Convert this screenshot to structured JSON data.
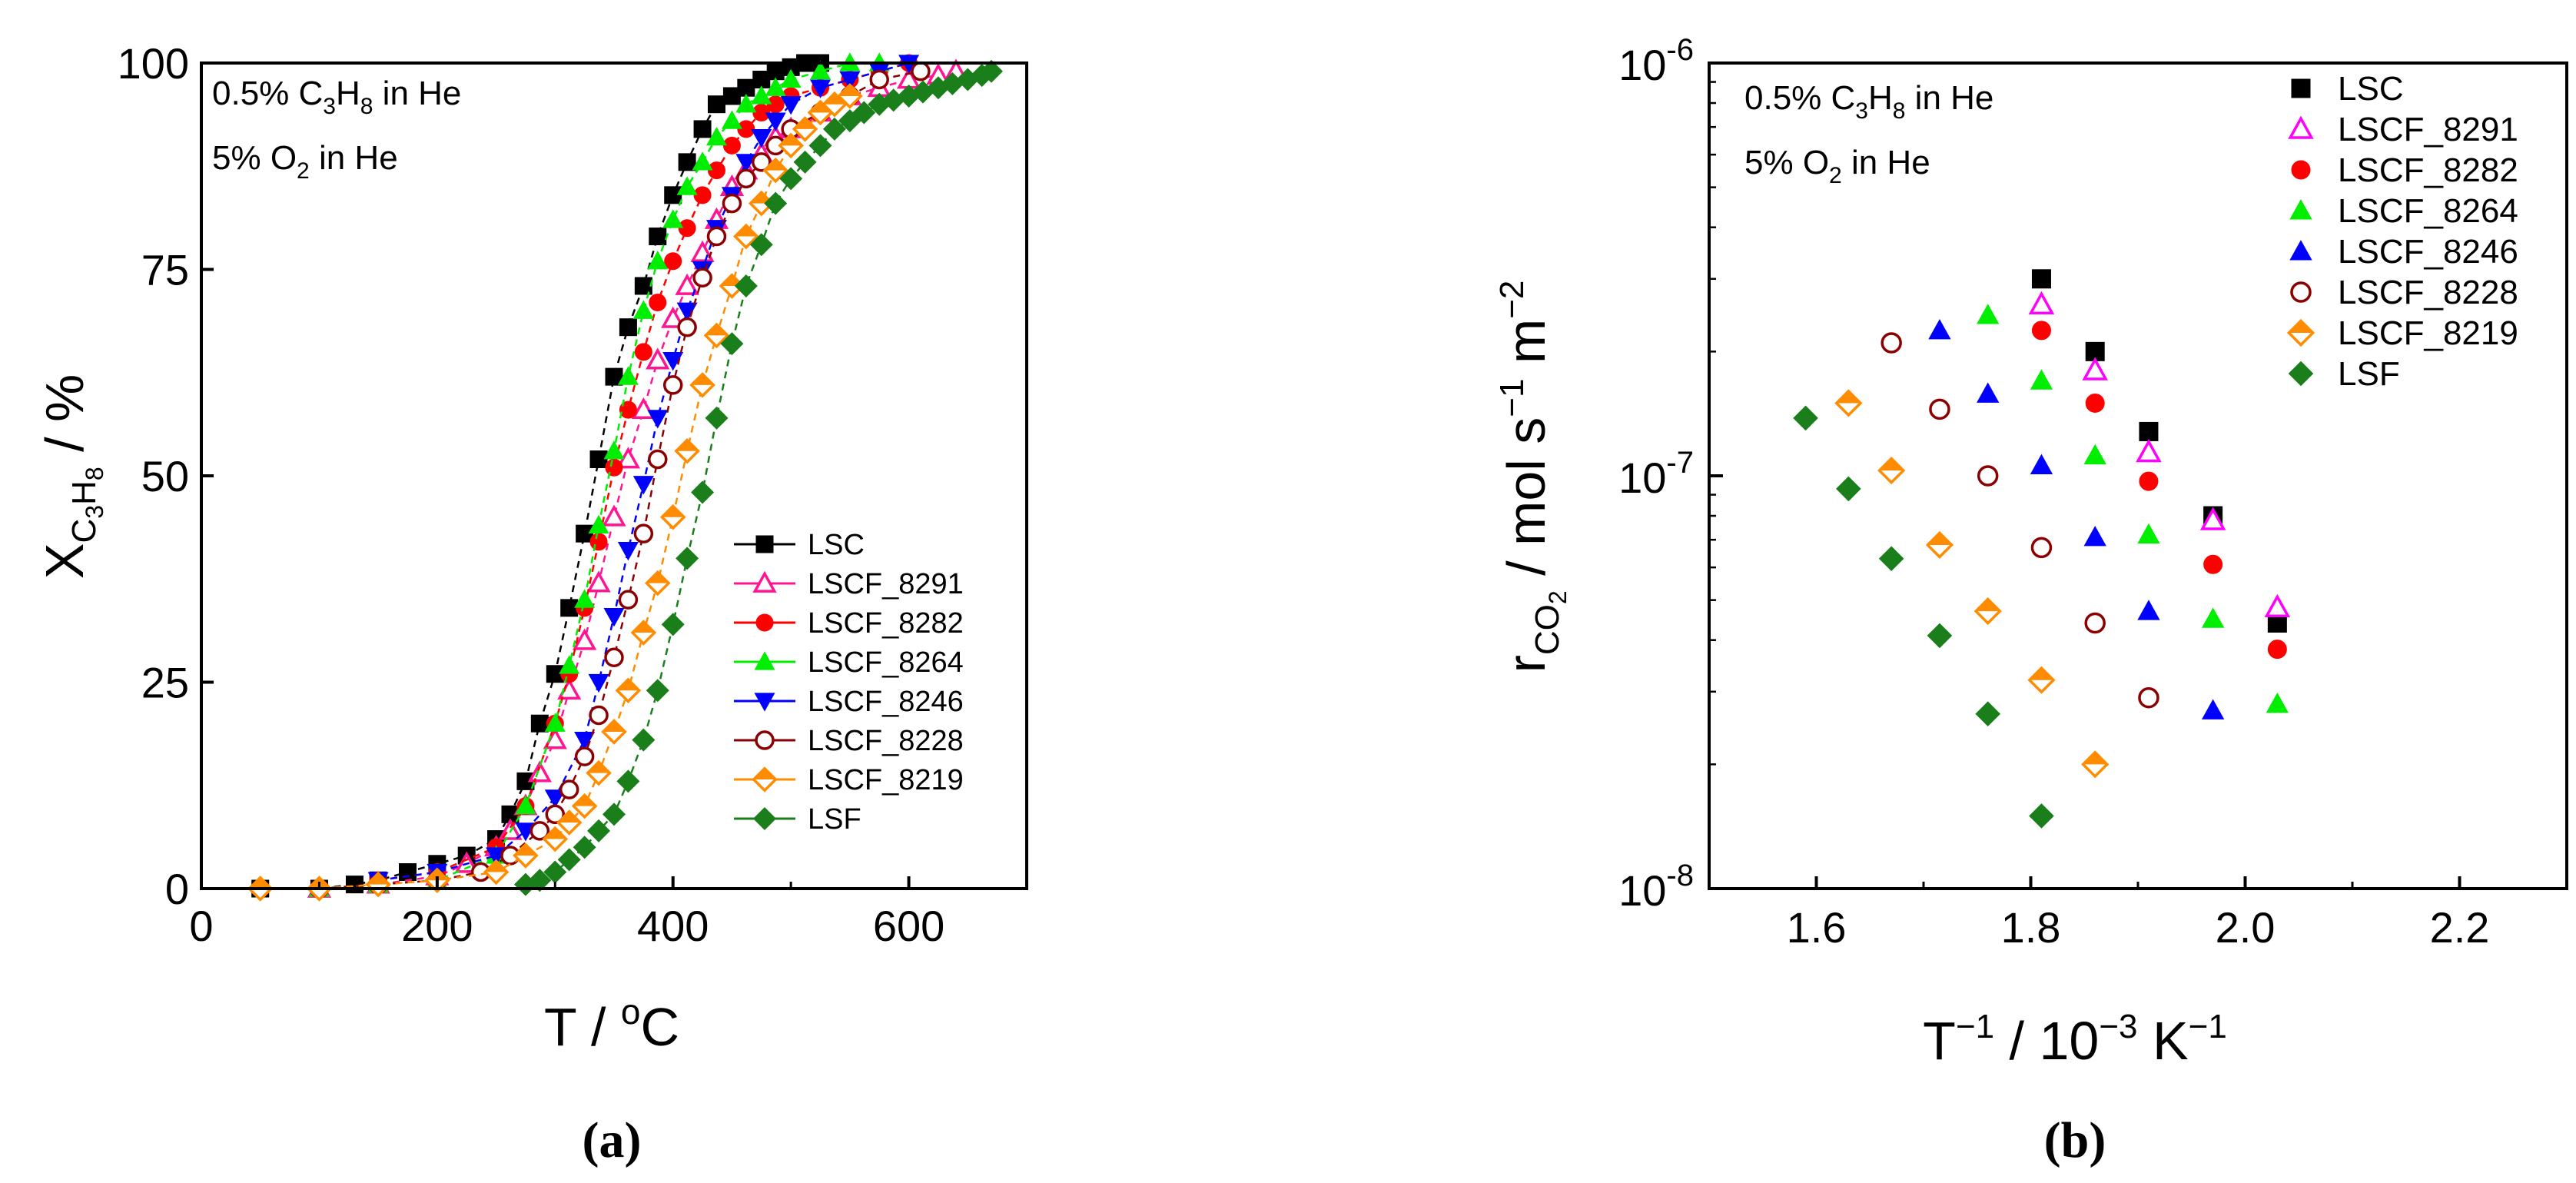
{
  "chart_data": [
    {
      "type": "line",
      "caption": "a",
      "conditions": [
        {
          "prefix": "0.5% C",
          "sub1": "3",
          "mid": "H",
          "sub2": "8",
          "suffix": " in He"
        },
        {
          "prefix": "5% O",
          "sub1": "2",
          "mid": "",
          "sub2": "",
          "suffix": " in He"
        }
      ],
      "xlabel": {
        "text": "T / ",
        "sup": "o",
        "after": "C"
      },
      "ylabel": {
        "text": "X",
        "sub": "C",
        "sub2": "3",
        "sub3": "H",
        "sub4": "8",
        "after": " / %"
      },
      "xlim": [
        0,
        700
      ],
      "ylim": [
        0,
        100
      ],
      "xticks": [
        0,
        200,
        400,
        600
      ],
      "yticks": [
        0,
        25,
        50,
        75,
        100
      ],
      "legend_position": "lower-right",
      "series": [
        {
          "name": "LSC",
          "color": "#000000",
          "marker": "square",
          "filled": true,
          "x": [
            50,
            100,
            130,
            150,
            175,
            200,
            225,
            250,
            262,
            275,
            287,
            300,
            312,
            325,
            337,
            350,
            362,
            375,
            387,
            400,
            412,
            425,
            437,
            450,
            462,
            475,
            487,
            500,
            512,
            525
          ],
          "y": [
            0,
            0,
            0.5,
            1,
            2,
            3,
            4,
            6,
            9,
            13,
            20,
            26,
            34,
            43,
            52,
            62,
            68,
            73,
            79,
            84,
            88,
            92,
            95,
            96,
            97,
            98,
            99,
            99.5,
            100,
            100
          ]
        },
        {
          "name": "LSCF_8291",
          "color": "#ff1493",
          "marker": "triangle-up",
          "filled": false,
          "x": [
            100,
            150,
            200,
            225,
            250,
            262,
            275,
            287,
            300,
            312,
            325,
            337,
            350,
            362,
            375,
            387,
            400,
            412,
            425,
            437,
            450,
            462,
            475,
            487,
            500,
            525,
            550,
            575,
            600,
            625,
            640
          ],
          "y": [
            0,
            0.5,
            1.5,
            3,
            5,
            7,
            10,
            14,
            18,
            24,
            30,
            37,
            45,
            52,
            58,
            64,
            69,
            73,
            77,
            81,
            85,
            87,
            89,
            91,
            92,
            94,
            96,
            97,
            98,
            98.5,
            99
          ]
        },
        {
          "name": "LSCF_8282",
          "color": "#ff0000",
          "marker": "circle",
          "filled": true,
          "x": [
            150,
            200,
            250,
            275,
            300,
            312,
            325,
            337,
            350,
            362,
            375,
            387,
            400,
            412,
            425,
            437,
            450,
            462,
            475,
            487,
            500,
            525,
            550,
            575,
            600
          ],
          "y": [
            1,
            2,
            5,
            10,
            20,
            26,
            34,
            42,
            51,
            58,
            65,
            71,
            76,
            80,
            84,
            87,
            90,
            92,
            94,
            95,
            96,
            97,
            98,
            99,
            100
          ]
        },
        {
          "name": "LSCF_8264",
          "color": "#00ee00",
          "marker": "triangle-up",
          "filled": true,
          "x": [
            100,
            150,
            200,
            250,
            275,
            300,
            312,
            325,
            337,
            350,
            362,
            375,
            387,
            400,
            412,
            425,
            437,
            450,
            462,
            475,
            487,
            500,
            525,
            550,
            575
          ],
          "y": [
            0,
            0.5,
            1,
            4,
            10,
            20,
            27,
            35,
            44,
            53,
            62,
            70,
            76,
            81,
            85,
            88,
            91,
            93,
            95,
            96,
            97,
            98,
            99,
            100,
            100
          ]
        },
        {
          "name": "LSCF_8246",
          "color": "#0000ff",
          "marker": "triangle-down",
          "filled": true,
          "x": [
            150,
            200,
            250,
            275,
            300,
            325,
            337,
            350,
            362,
            375,
            387,
            400,
            412,
            425,
            437,
            450,
            462,
            475,
            487,
            500,
            525,
            550,
            575,
            600
          ],
          "y": [
            1,
            2,
            4,
            7,
            11,
            18,
            25,
            33,
            41,
            49,
            57,
            64,
            70,
            75,
            80,
            84,
            88,
            91,
            93,
            95,
            97,
            98,
            99,
            100
          ]
        },
        {
          "name": "LSCF_8228",
          "color": "#8b0000",
          "marker": "circle",
          "filled": false,
          "x": [
            100,
            150,
            200,
            237,
            262,
            287,
            300,
            312,
            325,
            337,
            350,
            362,
            375,
            387,
            400,
            412,
            425,
            437,
            450,
            462,
            475,
            487,
            500,
            525,
            550,
            575,
            610
          ],
          "y": [
            0,
            0.5,
            1,
            2,
            4,
            7,
            9,
            12,
            16,
            21,
            28,
            35,
            43,
            52,
            61,
            68,
            74,
            79,
            83,
            86,
            88,
            90,
            92,
            94,
            96,
            98,
            99
          ]
        },
        {
          "name": "LSCF_8219",
          "color": "#ff8c00",
          "marker": "diamond",
          "filled": false,
          "x": [
            50,
            100,
            150,
            200,
            250,
            275,
            300,
            312,
            325,
            337,
            350,
            362,
            375,
            387,
            400,
            412,
            425,
            437,
            450,
            462,
            475,
            487,
            500,
            512,
            525,
            537,
            550
          ],
          "y": [
            0,
            0,
            0.5,
            1,
            2,
            4,
            6,
            8,
            10,
            14,
            19,
            24,
            31,
            37,
            45,
            53,
            61,
            67,
            73,
            79,
            83,
            87,
            90,
            92,
            94,
            95,
            96
          ]
        },
        {
          "name": "LSF",
          "color": "#1a7f1a",
          "marker": "diamond",
          "filled": true,
          "x": [
            275,
            287,
            300,
            312,
            325,
            337,
            350,
            362,
            375,
            387,
            400,
            412,
            425,
            437,
            450,
            462,
            475,
            487,
            500,
            512,
            525,
            537,
            550,
            562,
            575,
            587,
            600,
            612,
            625,
            637,
            650,
            662,
            670
          ],
          "y": [
            0.5,
            1,
            2,
            3.5,
            5,
            7,
            9,
            13,
            18,
            24,
            32,
            40,
            48,
            57,
            66,
            73,
            78,
            83,
            86,
            88,
            90,
            92,
            93,
            94,
            95,
            95.5,
            96,
            96.5,
            97,
            97.5,
            98,
            98.5,
            99
          ]
        }
      ]
    },
    {
      "type": "scatter",
      "caption": "b",
      "conditions": [
        {
          "prefix": "0.5% C",
          "sub1": "3",
          "mid": "H",
          "sub2": "8",
          "suffix": " in He"
        },
        {
          "prefix": "5% O",
          "sub1": "2",
          "mid": "",
          "sub2": "",
          "suffix": " in He"
        }
      ],
      "xlabel": {
        "t1": "T",
        "s1": "−1",
        "t2": " / 10",
        "s2": "−3",
        "t3": " K",
        "s3": "−1"
      },
      "ylabel": {
        "t1": "r",
        "sub": "CO",
        "sub2": "2",
        "t2": " / mol s",
        "s1": "−1",
        "t3": " m",
        "s2": "−2"
      },
      "xlim": [
        1.5,
        2.3
      ],
      "ylim": [
        1e-08,
        1e-06
      ],
      "yscale": "log",
      "xticks": [
        "1.6",
        "1.8",
        "2.0",
        "2.2"
      ],
      "yticks": [
        {
          "mant": "10",
          "exp": "-8"
        },
        {
          "mant": "10",
          "exp": "-7"
        },
        {
          "mant": "10",
          "exp": "-6"
        }
      ],
      "legend_position": "top-right",
      "series": [
        {
          "name": "LSC",
          "color": "#000000",
          "marker": "square",
          "filled": true,
          "x": [
            1.81,
            1.86,
            1.91,
            1.97,
            2.03
          ],
          "y": [
            3e-07,
            2e-07,
            1.28e-07,
            8e-08,
            4.4e-08
          ]
        },
        {
          "name": "LSCF_8291",
          "color": "#ff00ff",
          "marker": "triangle-up",
          "filled": false,
          "x": [
            1.81,
            1.86,
            1.91,
            1.97,
            2.03
          ],
          "y": [
            2.6e-07,
            1.8e-07,
            1.14e-07,
            7.8e-08,
            4.8e-08
          ]
        },
        {
          "name": "LSCF_8282",
          "color": "#ff0000",
          "marker": "circle",
          "filled": true,
          "x": [
            1.81,
            1.86,
            1.91,
            1.97,
            2.03
          ],
          "y": [
            2.25e-07,
            1.5e-07,
            9.7e-08,
            6.1e-08,
            3.8e-08
          ]
        },
        {
          "name": "LSCF_8264",
          "color": "#00ee00",
          "marker": "triangle-up",
          "filled": true,
          "x": [
            1.76,
            1.81,
            1.86,
            1.91,
            1.97,
            2.03
          ],
          "y": [
            2.45e-07,
            1.7e-07,
            1.12e-07,
            7.2e-08,
            4.5e-08,
            2.8e-08
          ]
        },
        {
          "name": "LSCF_8246",
          "color": "#0000ff",
          "marker": "triangle-up",
          "filled": true,
          "x": [
            1.715,
            1.76,
            1.81,
            1.86,
            1.91,
            1.97
          ],
          "y": [
            2.25e-07,
            1.58e-07,
            1.06e-07,
            7.1e-08,
            4.7e-08,
            2.7e-08
          ]
        },
        {
          "name": "LSCF_8228",
          "color": "#8b0000",
          "marker": "circle",
          "filled": false,
          "x": [
            1.67,
            1.715,
            1.76,
            1.81,
            1.86,
            1.91
          ],
          "y": [
            2.1e-07,
            1.45e-07,
            1e-07,
            6.7e-08,
            4.4e-08,
            2.9e-08
          ]
        },
        {
          "name": "LSCF_8219",
          "color": "#ff8c00",
          "marker": "diamond",
          "filled": false,
          "x": [
            1.63,
            1.67,
            1.715,
            1.76,
            1.81,
            1.86
          ],
          "y": [
            1.5e-07,
            1.03e-07,
            6.8e-08,
            4.7e-08,
            3.2e-08,
            2e-08
          ]
        },
        {
          "name": "LSF",
          "color": "#1a7f1a",
          "marker": "diamond",
          "filled": true,
          "x": [
            1.59,
            1.63,
            1.67,
            1.715,
            1.76,
            1.81
          ],
          "y": [
            1.38e-07,
            9.3e-08,
            6.3e-08,
            4.1e-08,
            2.65e-08,
            1.5e-08
          ]
        }
      ]
    }
  ]
}
